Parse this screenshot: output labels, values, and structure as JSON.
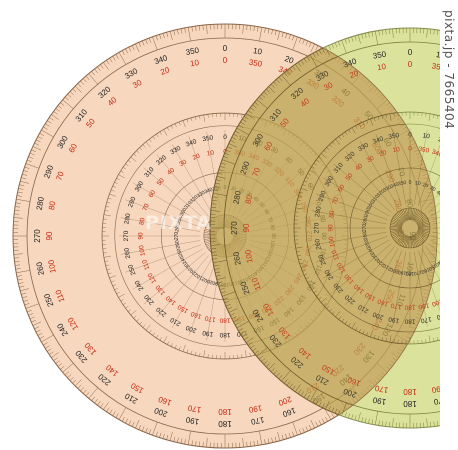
{
  "image": {
    "subject": "protractors",
    "credit": "pixta.jp - 7665404",
    "watermark": "PIXTA"
  },
  "colors": {
    "background": "#ffffff",
    "peach_fill": "#f7d7bd",
    "peach_line": "#8a6548",
    "green_fill": "#d8df92",
    "green_line": "#7b7f3a",
    "overlap_fill": "#b9a24e",
    "black_numbers": "#222222",
    "red_numbers": "#c62a12"
  },
  "scales": {
    "outer_black_step": 10,
    "outer_red_step": 10,
    "inner_black_step": 10,
    "inner_red_step": 10
  }
}
